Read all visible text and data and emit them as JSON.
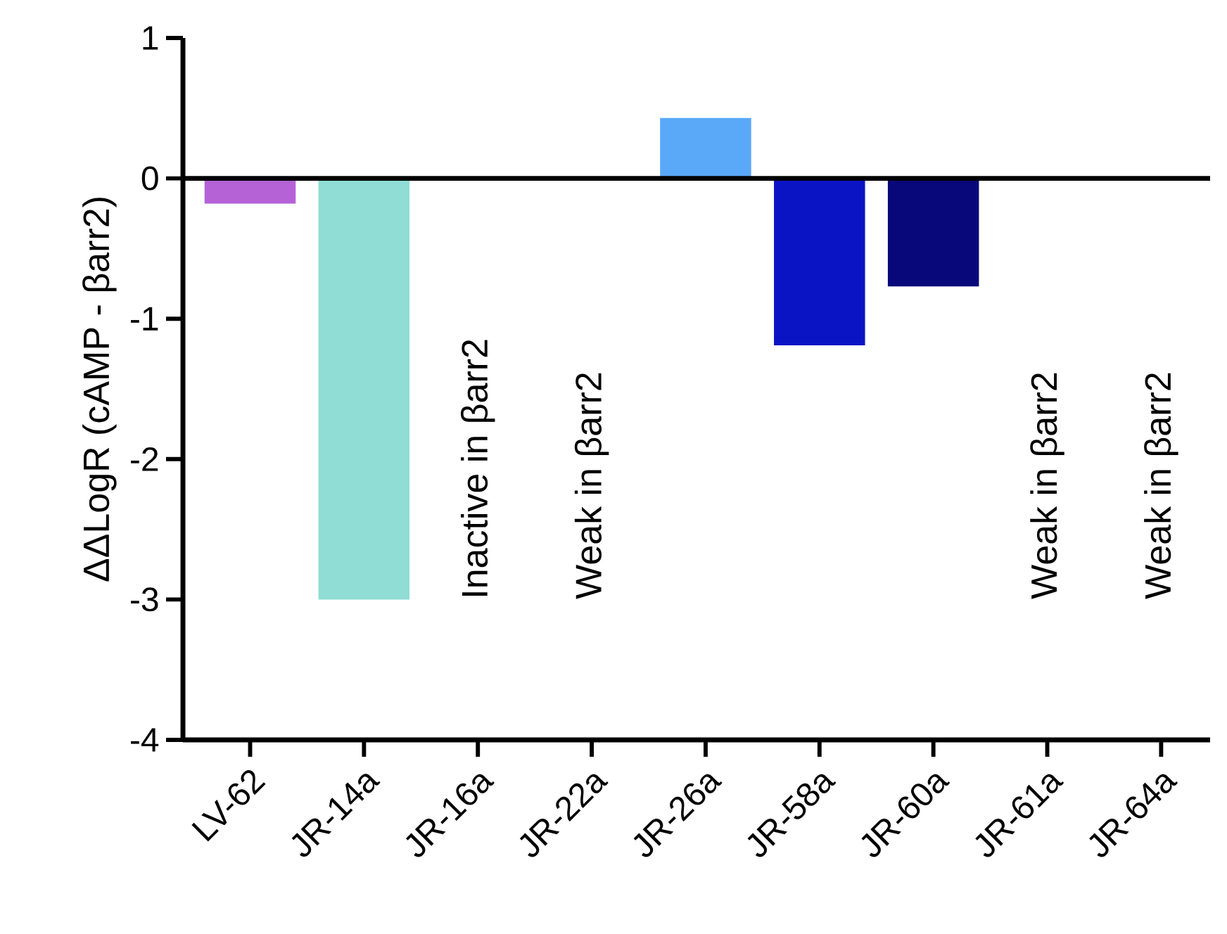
{
  "chart_data": {
    "type": "bar",
    "ylabel": "ΔΔLogR (cAMP - βarr2)",
    "categories": [
      "LV-62",
      "JR-14a",
      "JR-16a",
      "JR-22a",
      "JR-26a",
      "JR-58a",
      "JR-60a",
      "JR-61a",
      "JR-64a"
    ],
    "values": [
      -0.18,
      -3.0,
      null,
      null,
      0.43,
      -1.19,
      -0.77,
      null,
      null
    ],
    "colors": [
      "#b462d6",
      "#8fddd4",
      "#000000",
      "#000000",
      "#5aa8f8",
      "#0a14c4",
      "#08087a",
      "#000000",
      "#000000"
    ],
    "ylim": [
      -4,
      1
    ],
    "yticks": [
      -4,
      -3,
      -2,
      -1,
      0,
      1
    ],
    "ref_lines": [
      {
        "axis": "y",
        "value": 0,
        "color": "#000000"
      }
    ],
    "annotations": [
      "Inactive in βarr2",
      "Weak in βarr2",
      "Weak in βarr2",
      "Weak in βarr2"
    ]
  }
}
